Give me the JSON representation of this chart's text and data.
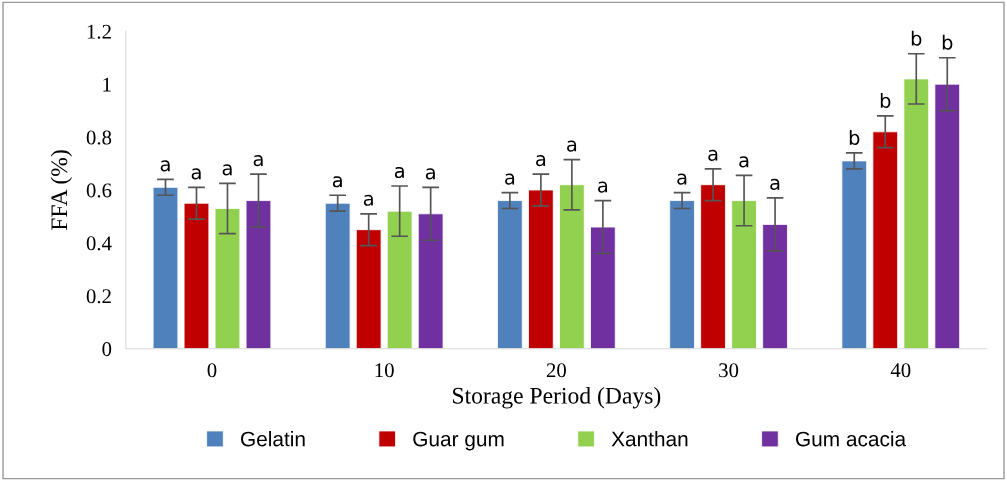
{
  "chart_data": {
    "type": "bar",
    "xlabel": "Storage Period (Days)",
    "ylabel": "FFA (%)",
    "categories": [
      "0",
      "10",
      "20",
      "30",
      "40"
    ],
    "series": [
      {
        "name": "Gelatin",
        "color": "#4f81bd",
        "values": [
          0.61,
          0.55,
          0.56,
          0.56,
          0.71
        ],
        "errors": [
          0.03,
          0.03,
          0.03,
          0.03,
          0.03
        ]
      },
      {
        "name": "Guar gum",
        "color": "#c00000",
        "values": [
          0.55,
          0.45,
          0.6,
          0.62,
          0.82
        ],
        "errors": [
          0.06,
          0.06,
          0.06,
          0.06,
          0.06
        ]
      },
      {
        "name": "Xanthan",
        "color": "#92d050",
        "values": [
          0.53,
          0.52,
          0.62,
          0.56,
          1.02
        ],
        "errors": [
          0.095,
          0.095,
          0.095,
          0.095,
          0.095
        ]
      },
      {
        "name": "Gum acacia",
        "color": "#7030a0",
        "values": [
          0.56,
          0.51,
          0.46,
          0.47,
          1.0
        ],
        "errors": [
          0.1,
          0.1,
          0.1,
          0.1,
          0.1
        ]
      }
    ],
    "ylim": [
      0,
      1.2
    ],
    "yticks": [
      0,
      0.2,
      0.4,
      0.6,
      0.8,
      1,
      1.2
    ],
    "grid": false,
    "legend": "bottom",
    "annotations": [
      "a",
      "a",
      "a",
      "a",
      "a",
      "a",
      "a",
      "a",
      "a",
      "a",
      "a",
      "a",
      "a",
      "a",
      "a",
      "a",
      "b",
      "b",
      "b",
      "b"
    ]
  }
}
